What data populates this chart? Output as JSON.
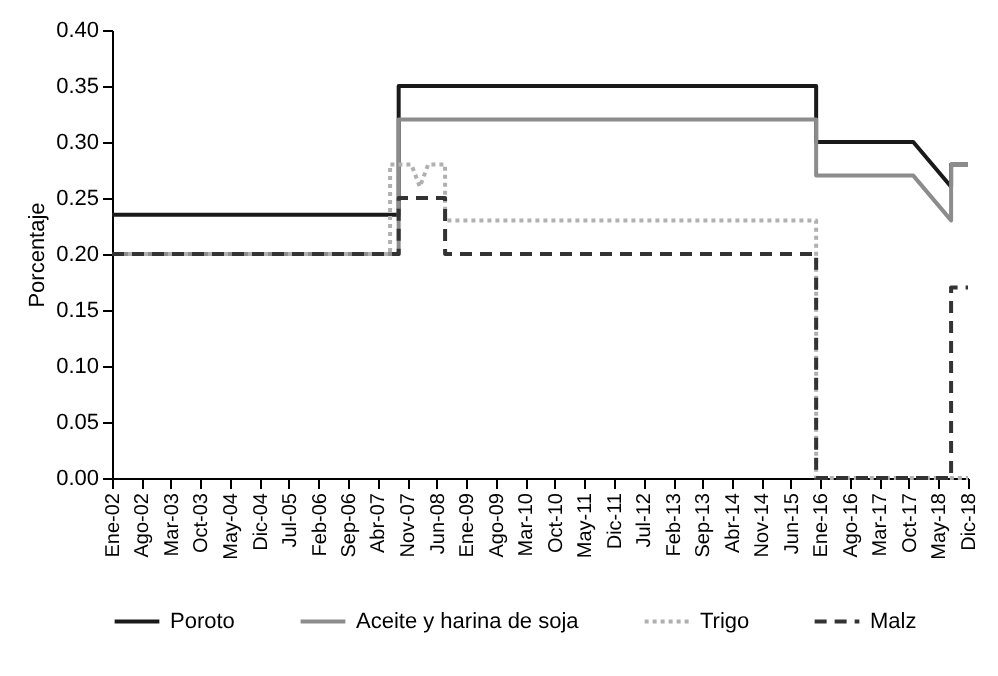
{
  "chart_data": {
    "type": "line",
    "ylabel": "Porcentaje",
    "legend": "bottom",
    "grid": false,
    "xlim": [
      "2002-01",
      "2018-12"
    ],
    "xticks": [
      {
        "value": "2002-01",
        "label": "Ene-02"
      },
      {
        "value": "2002-08",
        "label": "Ago-02"
      },
      {
        "value": "2003-03",
        "label": "Mar-03"
      },
      {
        "value": "2003-10",
        "label": "Oct-03"
      },
      {
        "value": "2004-05",
        "label": "May-04"
      },
      {
        "value": "2004-12",
        "label": "Dic-04"
      },
      {
        "value": "2005-07",
        "label": "Jul-05"
      },
      {
        "value": "2006-02",
        "label": "Feb-06"
      },
      {
        "value": "2006-09",
        "label": "Sep-06"
      },
      {
        "value": "2007-04",
        "label": "Abr-07"
      },
      {
        "value": "2007-11",
        "label": "Nov-07"
      },
      {
        "value": "2008-06",
        "label": "Jun-08"
      },
      {
        "value": "2009-01",
        "label": "Ene-09"
      },
      {
        "value": "2009-08",
        "label": "Ago-09"
      },
      {
        "value": "2010-03",
        "label": "Mar-10"
      },
      {
        "value": "2010-10",
        "label": "Oct-10"
      },
      {
        "value": "2011-05",
        "label": "May-11"
      },
      {
        "value": "2011-12",
        "label": "Dic-11"
      },
      {
        "value": "2012-07",
        "label": "Jul-12"
      },
      {
        "value": "2013-02",
        "label": "Feb-13"
      },
      {
        "value": "2013-09",
        "label": "Sep-13"
      },
      {
        "value": "2014-04",
        "label": "Abr-14"
      },
      {
        "value": "2014-11",
        "label": "Nov-14"
      },
      {
        "value": "2015-06",
        "label": "Jun-15"
      },
      {
        "value": "2016-01",
        "label": "Ene-16"
      },
      {
        "value": "2016-08",
        "label": "Ago-16"
      },
      {
        "value": "2017-03",
        "label": "Mar-17"
      },
      {
        "value": "2017-10",
        "label": "Oct-17"
      },
      {
        "value": "2018-05",
        "label": "May-18"
      },
      {
        "value": "2018-12",
        "label": "Dic-18"
      }
    ],
    "ylim": [
      0,
      0.4
    ],
    "yticks": [
      {
        "value": 0,
        "label": "0.00"
      },
      {
        "value": 0.05,
        "label": "0.05"
      },
      {
        "value": 0.1,
        "label": "0.10"
      },
      {
        "value": 0.15,
        "label": "0.15"
      },
      {
        "value": 0.2,
        "label": "0.20"
      },
      {
        "value": 0.25,
        "label": "0.25"
      },
      {
        "value": 0.3,
        "label": "0.30"
      },
      {
        "value": 0.35,
        "label": "0.35"
      },
      {
        "value": 0.4,
        "label": "0.40"
      }
    ],
    "series": [
      {
        "name": "Poroto",
        "color": "#1a1a1a",
        "line_style": "solid",
        "x": [
          "2002-01",
          "2007-09",
          "2007-09",
          "2015-12",
          "2015-12",
          "2017-11",
          "2018-08",
          "2018-08",
          "2018-12"
        ],
        "values": [
          0.235,
          0.235,
          0.35,
          0.35,
          0.3,
          0.3,
          0.26,
          0.28,
          0.28
        ]
      },
      {
        "name": "Aceite y harina de soja",
        "color": "#8c8c8c",
        "line_style": "solid",
        "x": [
          "2002-01",
          "2007-09",
          "2007-09",
          "2015-12",
          "2015-12",
          "2017-11",
          "2018-08",
          "2018-08",
          "2018-12"
        ],
        "values": [
          0.2,
          0.2,
          0.32,
          0.32,
          0.27,
          0.27,
          0.23,
          0.28,
          0.28
        ]
      },
      {
        "name": "Trigo",
        "color": "#b0b0b0",
        "line_style": "dotted",
        "x": [
          "2002-01",
          "2007-07",
          "2007-07",
          "2007-12",
          "2008-02",
          "2008-04",
          "2008-08",
          "2008-08",
          "2015-12",
          "2015-12",
          "2018-12"
        ],
        "values": [
          0.2,
          0.2,
          0.28,
          0.28,
          0.26,
          0.28,
          0.28,
          0.23,
          0.23,
          0,
          0
        ]
      },
      {
        "name": "Malz",
        "color": "#333333",
        "line_style": "dashed",
        "x": [
          "2002-01",
          "2007-09",
          "2007-09",
          "2008-08",
          "2008-08",
          "2015-12",
          "2015-12",
          "2018-08",
          "2018-08",
          "2018-12"
        ],
        "values": [
          0.2,
          0.2,
          0.25,
          0.25,
          0.2,
          0.2,
          0,
          0,
          0.17,
          0.17
        ]
      }
    ]
  }
}
